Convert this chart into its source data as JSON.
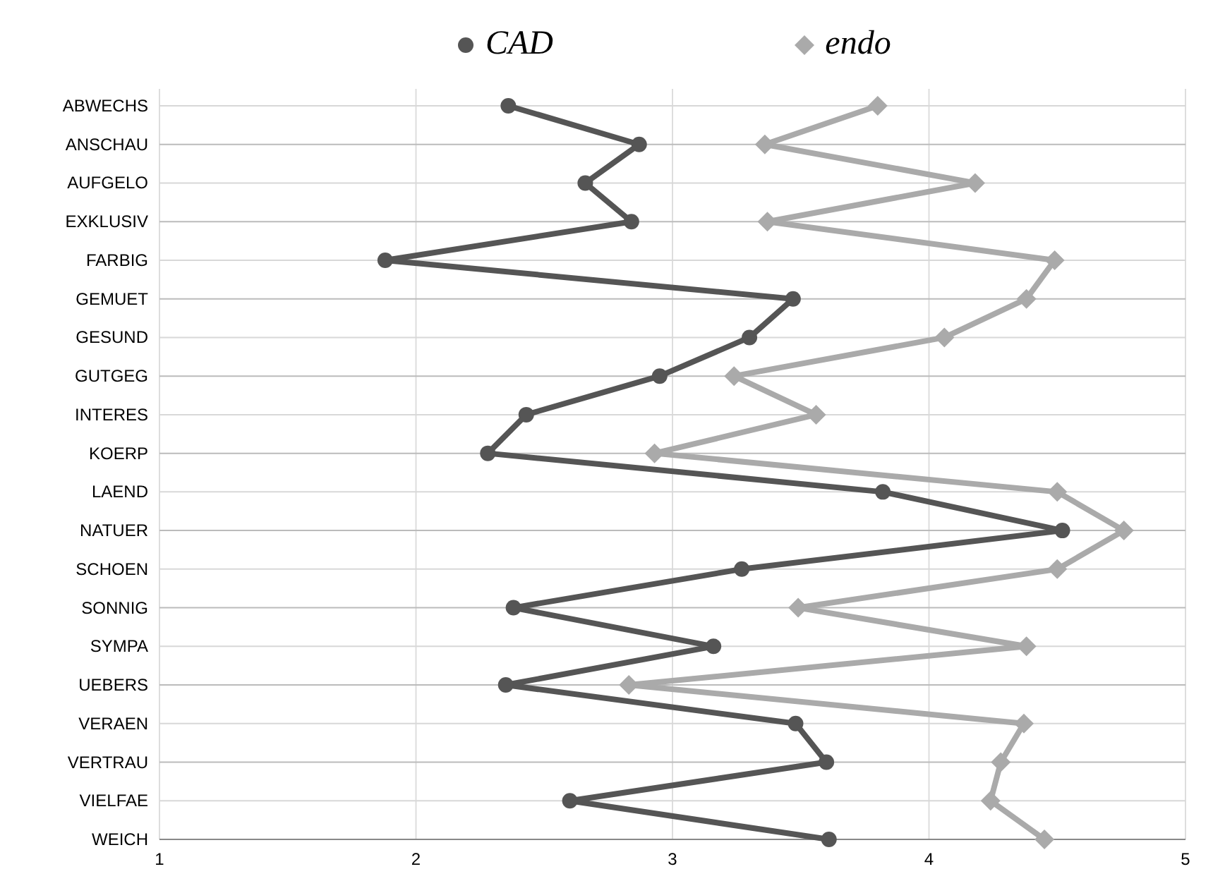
{
  "chart_data": {
    "type": "line",
    "orientation": "horizontal",
    "categories": [
      "ABWECHS",
      "ANSCHAU",
      "AUFGELO",
      "EXKLUSIV",
      "FARBIG",
      "GEMUET",
      "GESUND",
      "GUTGEG",
      "INTERES",
      "KOERP",
      "LAEND",
      "NATUER",
      "SCHOEN",
      "SONNIG",
      "SYMPA",
      "UEBERS",
      "VERAEN",
      "VERTRAU",
      "VIELFAE",
      "WEICH"
    ],
    "series": [
      {
        "name": "CAD",
        "color": "#555555",
        "marker": "circle",
        "values": [
          2.36,
          2.87,
          2.66,
          2.84,
          1.88,
          3.47,
          3.3,
          2.95,
          2.43,
          2.28,
          3.82,
          4.52,
          3.27,
          2.38,
          3.16,
          2.35,
          3.48,
          3.6,
          2.6,
          3.61
        ]
      },
      {
        "name": "endo",
        "color": "#aaaaaa",
        "marker": "diamond",
        "values": [
          3.8,
          3.36,
          4.18,
          3.37,
          4.49,
          4.38,
          4.06,
          3.24,
          3.56,
          2.93,
          4.5,
          4.76,
          4.5,
          3.49,
          4.38,
          2.83,
          4.37,
          4.28,
          4.24,
          4.45
        ]
      }
    ],
    "xlim": [
      1,
      5
    ],
    "xticks": [
      1,
      2,
      3,
      4,
      5
    ],
    "grid": true,
    "legend": "top",
    "line_style": "solid"
  }
}
